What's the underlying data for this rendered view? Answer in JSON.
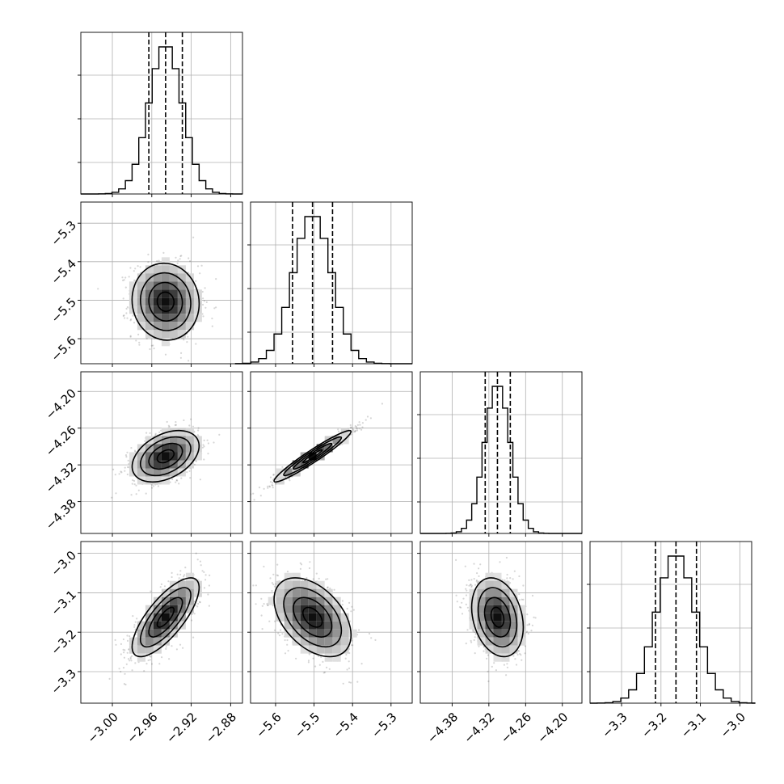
{
  "chart_data": {
    "type": "corner",
    "grid": true,
    "parameters": [
      {
        "range": [
          -3.032,
          -2.868
        ],
        "ticks": [
          -3.0,
          -2.96,
          -2.92,
          -2.88
        ],
        "tick_labels": [
          "−3.00",
          "−2.96",
          "−2.92",
          "−2.88"
        ],
        "mean": -2.946,
        "sd": 0.017,
        "quantiles": [
          -2.963,
          -2.946,
          -2.929
        ]
      },
      {
        "range": [
          -5.665,
          -5.245
        ],
        "ticks": [
          -5.6,
          -5.5,
          -5.4,
          -5.3
        ],
        "tick_labels": [
          "−5.6",
          "−5.5",
          "−5.4",
          "−5.3"
        ],
        "mean": -5.504,
        "sd": 0.05,
        "quantiles": [
          -5.556,
          -5.504,
          -5.452
        ]
      },
      {
        "range": [
          -4.432,
          -4.168
        ],
        "ticks": [
          -4.38,
          -4.32,
          -4.26,
          -4.2
        ],
        "tick_labels": [
          "−4.38",
          "−4.32",
          "−4.26",
          "−4.20"
        ],
        "mean": -4.306,
        "sd": 0.021,
        "quantiles": [
          -4.326,
          -4.306,
          -4.285
        ]
      },
      {
        "range": [
          -3.38,
          -2.97
        ],
        "ticks": [
          -3.3,
          -3.2,
          -3.1,
          -3.0
        ],
        "tick_labels": [
          "−3.3",
          "−3.2",
          "−3.1",
          "−3.0"
        ],
        "mean": -3.162,
        "sd": 0.05,
        "quantiles": [
          -3.214,
          -3.162,
          -3.11
        ]
      }
    ],
    "correlations": [
      [
        0,
        1,
        -0.05
      ],
      [
        0,
        2,
        0.4
      ],
      [
        0,
        3,
        0.75
      ],
      [
        1,
        2,
        0.96
      ],
      [
        1,
        3,
        -0.45
      ],
      [
        2,
        3,
        -0.25
      ]
    ],
    "contour_levels_sigma": [
      0.5,
      1.0,
      1.5,
      2.0
    ]
  }
}
